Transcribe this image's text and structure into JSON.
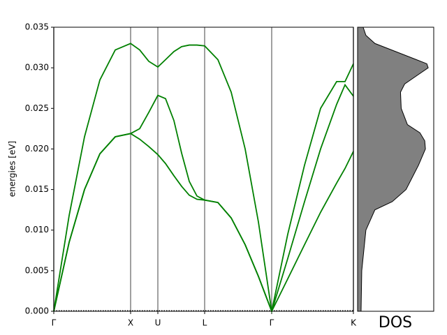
{
  "chart_data": [
    {
      "type": "line",
      "ylabel": "energies [eV]",
      "x": [
        0,
        0.22,
        0.44,
        0.66,
        0.88,
        1.1,
        1.23,
        1.36,
        1.49,
        1.6,
        1.72,
        1.83,
        1.94,
        2.05,
        2.16,
        2.35,
        2.54,
        2.74,
        2.93,
        3.12,
        3.35,
        3.59,
        3.82,
        4.05,
        4.17,
        4.29
      ],
      "series": [
        {
          "color": "#008000",
          "values": [
            0,
            0.0085,
            0.015,
            0.0194,
            0.0215,
            0.0219,
            0.0212,
            0.0203,
            0.0193,
            0.0182,
            0.0167,
            0.0154,
            0.0143,
            0.0138,
            0.0137,
            0.0134,
            0.0115,
            0.0082,
            0.0043,
            0,
            0.004,
            0.0082,
            0.0122,
            0.0158,
            0.0176,
            0.0197
          ]
        },
        {
          "color": "#008000",
          "values": [
            0,
            0.0085,
            0.015,
            0.0194,
            0.0215,
            0.0219,
            0.0225,
            0.0245,
            0.0266,
            0.0262,
            0.0235,
            0.0195,
            0.016,
            0.0142,
            0.0137,
            0.0134,
            0.0115,
            0.0082,
            0.0043,
            0,
            0.0065,
            0.0135,
            0.02,
            0.0255,
            0.0279,
            0.0265
          ]
        },
        {
          "color": "#008000",
          "values": [
            0,
            0.0118,
            0.0215,
            0.0285,
            0.0322,
            0.033,
            0.0322,
            0.0308,
            0.0301,
            0.031,
            0.032,
            0.0326,
            0.0328,
            0.0328,
            0.0327,
            0.031,
            0.027,
            0.02,
            0.011,
            0,
            0.0095,
            0.018,
            0.025,
            0.0283,
            0.0283,
            0.0305
          ]
        }
      ],
      "xlim": [
        0,
        4.29
      ],
      "xticks": [
        {
          "value": 0,
          "label": "Γ"
        },
        {
          "value": 1.1,
          "label": "X"
        },
        {
          "value": 1.49,
          "label": "U"
        },
        {
          "value": 2.16,
          "label": "L"
        },
        {
          "value": 3.12,
          "label": "Γ"
        },
        {
          "value": 4.29,
          "label": "K"
        }
      ],
      "ylim": [
        0,
        0.035
      ],
      "yticks": [
        {
          "value": 0,
          "label": "0.000"
        },
        {
          "value": 0.005,
          "label": "0.005"
        },
        {
          "value": 0.01,
          "label": "0.010"
        },
        {
          "value": 0.015,
          "label": "0.015"
        },
        {
          "value": 0.02,
          "label": "0.020"
        },
        {
          "value": 0.025,
          "label": "0.025"
        },
        {
          "value": 0.03,
          "label": "0.030"
        },
        {
          "value": 0.035,
          "label": "0.035"
        }
      ]
    },
    {
      "type": "area",
      "orientation": "horizontal",
      "xlabel": "DOS",
      "color": "#808080",
      "y": [
        0,
        0.005,
        0.01,
        0.0125,
        0.0135,
        0.015,
        0.018,
        0.02,
        0.021,
        0.022,
        0.023,
        0.025,
        0.027,
        0.028,
        0.029,
        0.03,
        0.0305,
        0.031,
        0.032,
        0.033,
        0.034,
        0.035
      ],
      "values": [
        5,
        6,
        12,
        25,
        50,
        70,
        88,
        98,
        97,
        90,
        72,
        63,
        62,
        68,
        85,
        102,
        100,
        85,
        55,
        25,
        12,
        8
      ],
      "xlim": [
        0,
        110
      ],
      "ylim": [
        0,
        0.035
      ]
    }
  ]
}
